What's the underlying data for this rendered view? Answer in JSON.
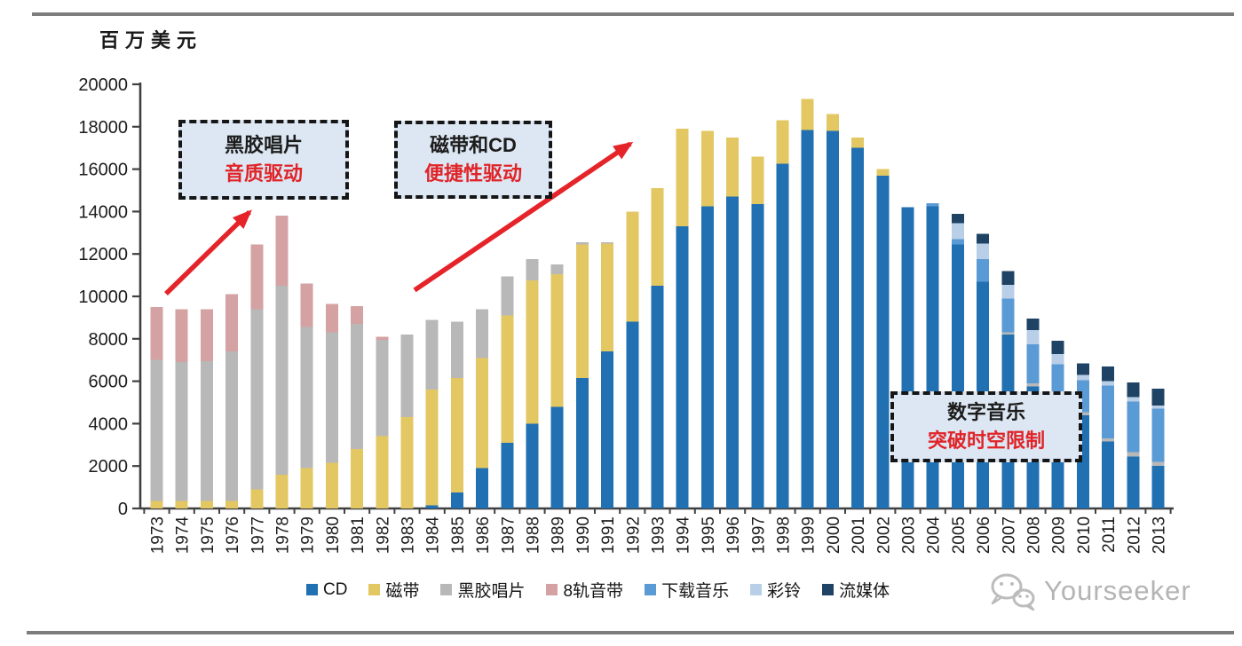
{
  "unit_label": "百万美元",
  "annotations": [
    {
      "line1": "黑胶唱片",
      "line2": "音质驱动"
    },
    {
      "line1": "磁带和CD",
      "line2": "便捷性驱动"
    },
    {
      "line1": "数字音乐",
      "line2": "突破时空限制"
    }
  ],
  "watermark": "Yourseeker",
  "colors": {
    "cd": "#2170b2",
    "cassette": "#e3c763",
    "vinyl": "#b8b8b8",
    "eight_track": "#d4a2a2",
    "downloads": "#5b9bd5",
    "ringtones": "#b9cfe8",
    "streaming": "#1f4364",
    "arrow_red": "#e5242a",
    "axis": "#404040",
    "annotation_fill": "#dce7f3"
  },
  "chart_data": {
    "type": "bar",
    "stacked": true,
    "title": "",
    "ylabel": "百万美元",
    "xlabel": "",
    "ylim": [
      0,
      20000
    ],
    "ytick_step": 2000,
    "grid": false,
    "legend_position": "bottom",
    "categories": [
      "1973",
      "1974",
      "1975",
      "1976",
      "1977",
      "1978",
      "1979",
      "1980",
      "1981",
      "1982",
      "1983",
      "1984",
      "1985",
      "1986",
      "1987",
      "1988",
      "1989",
      "1990",
      "1991",
      "1992",
      "1993",
      "1994",
      "1995",
      "1996",
      "1997",
      "1998",
      "1999",
      "2000",
      "2001",
      "2002",
      "2003",
      "2004",
      "2005",
      "2006",
      "2007",
      "2008",
      "2009",
      "2010",
      "2011",
      "2012",
      "2013"
    ],
    "series": [
      {
        "name": "CD",
        "color": "#2170b2",
        "values": [
          0,
          0,
          0,
          0,
          0,
          0,
          0,
          0,
          0,
          0,
          0,
          150,
          750,
          1900,
          3100,
          4000,
          4800,
          6150,
          7400,
          8800,
          10500,
          13300,
          14250,
          14700,
          14350,
          16250,
          17850,
          17800,
          17000,
          15700,
          14200,
          14250,
          12450,
          10700,
          8200,
          5750,
          5100,
          4400,
          3150,
          2450,
          2000
        ]
      },
      {
        "name": "磁带",
        "color": "#e3c763",
        "values": [
          350,
          350,
          350,
          350,
          900,
          1600,
          1900,
          2150,
          2800,
          3400,
          4300,
          5450,
          5400,
          5200,
          6000,
          6750,
          6250,
          6300,
          5100,
          5200,
          4600,
          4600,
          3550,
          2800,
          2250,
          2050,
          1450,
          800,
          500,
          300,
          0,
          0,
          0,
          0,
          0,
          0,
          0,
          0,
          0,
          0,
          0
        ]
      },
      {
        "name": "黑胶唱片",
        "color": "#b8b8b8",
        "values": [
          6650,
          6550,
          6600,
          7050,
          8500,
          8900,
          6650,
          6150,
          5900,
          4550,
          3900,
          3300,
          2650,
          2300,
          1850,
          1000,
          450,
          100,
          50,
          0,
          0,
          0,
          0,
          0,
          0,
          0,
          0,
          0,
          0,
          0,
          0,
          0,
          0,
          0,
          100,
          150,
          150,
          150,
          150,
          200,
          200
        ]
      },
      {
        "name": "8轨音带",
        "color": "#d4a2a2",
        "values": [
          2500,
          2500,
          2450,
          2700,
          3050,
          3300,
          2050,
          1350,
          850,
          150,
          0,
          0,
          0,
          0,
          0,
          0,
          0,
          0,
          0,
          0,
          0,
          0,
          0,
          0,
          0,
          0,
          0,
          0,
          0,
          0,
          0,
          0,
          0,
          0,
          0,
          0,
          0,
          0,
          0,
          0,
          0
        ]
      },
      {
        "name": "下载音乐",
        "color": "#5b9bd5",
        "values": [
          0,
          0,
          0,
          0,
          0,
          0,
          0,
          0,
          0,
          0,
          0,
          0,
          0,
          0,
          0,
          0,
          0,
          0,
          0,
          0,
          0,
          0,
          0,
          0,
          0,
          0,
          0,
          0,
          0,
          0,
          0,
          150,
          250,
          1050,
          1600,
          1850,
          1550,
          1500,
          2500,
          2400,
          2500
        ]
      },
      {
        "name": "彩铃",
        "color": "#b9cfe8",
        "values": [
          0,
          0,
          0,
          0,
          0,
          0,
          0,
          0,
          0,
          0,
          0,
          0,
          0,
          0,
          0,
          0,
          0,
          0,
          0,
          0,
          0,
          0,
          0,
          0,
          0,
          0,
          0,
          0,
          0,
          0,
          0,
          0,
          750,
          750,
          650,
          650,
          480,
          250,
          200,
          200,
          150
        ]
      },
      {
        "name": "流媒体",
        "color": "#1f4364",
        "values": [
          0,
          0,
          0,
          0,
          0,
          0,
          0,
          0,
          0,
          0,
          0,
          0,
          0,
          0,
          0,
          0,
          0,
          0,
          0,
          0,
          0,
          0,
          0,
          0,
          0,
          0,
          0,
          0,
          0,
          0,
          0,
          0,
          450,
          450,
          650,
          550,
          620,
          550,
          700,
          700,
          800
        ]
      }
    ]
  }
}
